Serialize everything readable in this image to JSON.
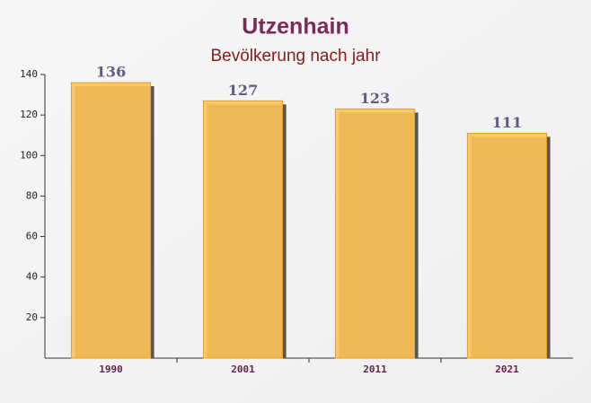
{
  "chart_data": {
    "type": "bar",
    "title": "Utzenhain",
    "subtitle": "Bevölkerung nach jahr",
    "categories": [
      "1990",
      "2001",
      "2011",
      "2021"
    ],
    "values": [
      136,
      127,
      123,
      111
    ],
    "color": "#ffc559",
    "ylim": [
      0,
      140
    ],
    "yticks": [
      20,
      40,
      60,
      80,
      100,
      120,
      140
    ],
    "grid": false
  }
}
